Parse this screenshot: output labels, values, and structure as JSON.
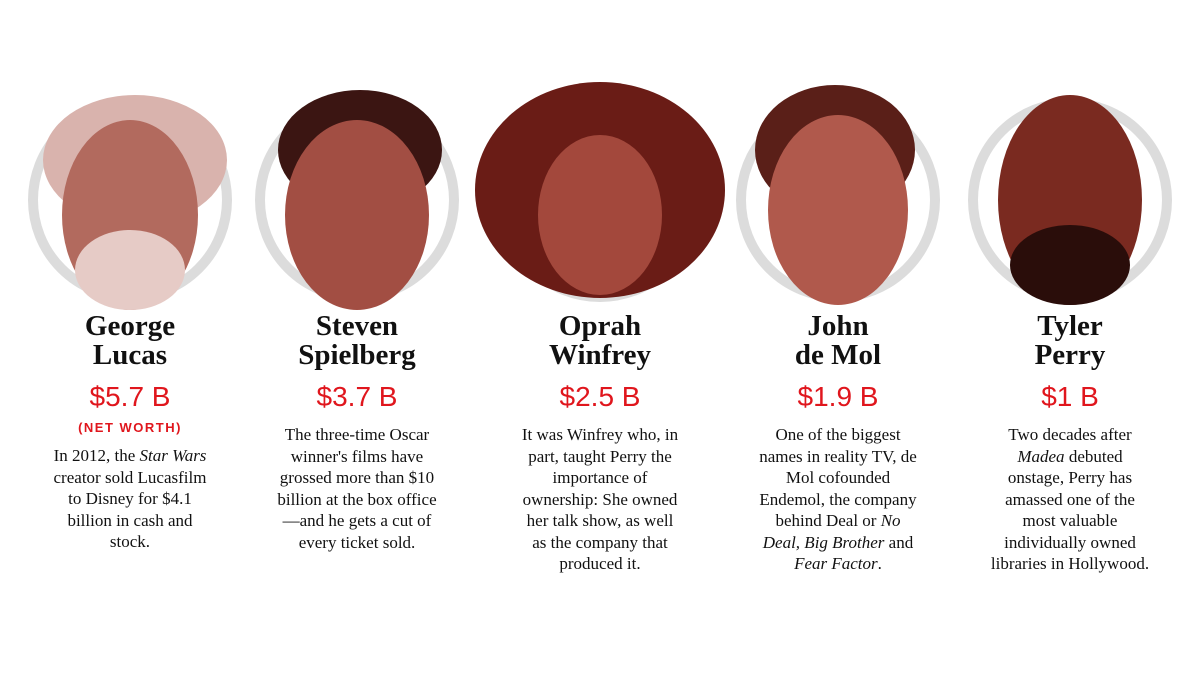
{
  "people": [
    {
      "name_lines": [
        "George",
        "Lucas"
      ],
      "net_worth": "$5.7 B",
      "note": "(NET WORTH)",
      "description": [
        {
          "text": "In 2012, the "
        },
        {
          "text": "Star Wars",
          "italic": true
        },
        {
          "text": " creator sold Lucasfilm to Disney for $4.1 billion in cash and stock."
        }
      ]
    },
    {
      "name_lines": [
        "Steven",
        "Spielberg"
      ],
      "net_worth": "$3.7 B",
      "description": [
        {
          "text": "The three-time Oscar winner's films have grossed more than $10 billion at the box office—and he gets a cut of every ticket sold."
        }
      ]
    },
    {
      "name_lines": [
        "Oprah",
        "Winfrey"
      ],
      "net_worth": "$2.5 B",
      "description": [
        {
          "text": "It was Winfrey who, in part, taught Perry the importance of ownership: She owned her talk show, as well as the company that produced it."
        }
      ]
    },
    {
      "name_lines": [
        "John",
        "de Mol"
      ],
      "net_worth": "$1.9 B",
      "description": [
        {
          "text": "One of the biggest names in reality TV, de Mol cofounded Endemol, the company behind Deal or "
        },
        {
          "text": "No Deal, Big Brother",
          "italic": true
        },
        {
          "text": " and "
        },
        {
          "text": "Fear Factor",
          "italic": true
        },
        {
          "text": "."
        }
      ]
    },
    {
      "name_lines": [
        "Tyler",
        "Perry"
      ],
      "net_worth": "$1 B",
      "description": [
        {
          "text": "Two decades after "
        },
        {
          "text": "Madea",
          "italic": true
        },
        {
          "text": " debuted onstage, Perry has amassed one of the most valuable individually owned libraries in Hollywood."
        }
      ]
    }
  ]
}
